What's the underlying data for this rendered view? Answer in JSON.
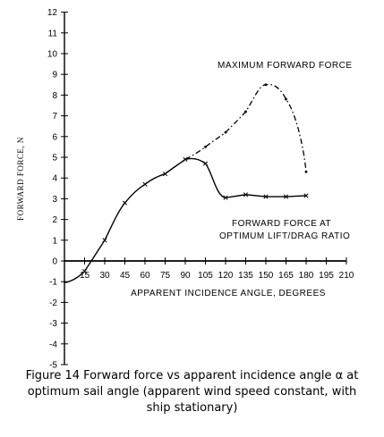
{
  "chart_data": {
    "type": "line",
    "ylabel": "FORWARD FORCE, N",
    "xlabel": "APPARENT INCIDENCE ANGLE, DEGREES",
    "xlim": [
      0,
      210
    ],
    "ylim": [
      -5,
      12
    ],
    "x_ticks": [
      "15",
      "30",
      "45",
      "60",
      "75",
      "90",
      "105",
      "120",
      "135",
      "150",
      "165",
      "180",
      "195",
      "210"
    ],
    "y_ticks": [
      "12",
      "11",
      "10",
      "9",
      "8",
      "7",
      "6",
      "5",
      "4",
      "3",
      "2",
      "1",
      "0",
      "-1",
      "-2",
      "-3",
      "-4",
      "-5"
    ],
    "grid": false,
    "series": [
      {
        "name": "FORWARD FORCE AT OPTIMUM LIFT/DRAG RATIO",
        "line_style": "solid",
        "x": [
          15,
          30,
          45,
          60,
          75,
          90,
          105,
          120,
          135,
          150,
          165,
          180
        ],
        "y": [
          -0.5,
          1.0,
          2.8,
          3.7,
          4.2,
          4.9,
          4.7,
          3.05,
          3.2,
          3.1,
          3.1,
          3.15
        ]
      },
      {
        "name": "MAXIMUM FORWARD FORCE",
        "line_style": "dashed",
        "x": [
          90,
          105,
          120,
          135,
          150,
          165,
          180
        ],
        "y": [
          4.9,
          5.5,
          6.2,
          7.2,
          8.5,
          7.8,
          4.3
        ]
      }
    ],
    "annotations": [
      {
        "lines": [
          "MAXIMUM FORWARD FORCE"
        ]
      },
      {
        "lines": [
          "FORWARD FORCE AT",
          "OPTIMUM LIFT/DRAG RATIO"
        ]
      }
    ]
  },
  "caption": {
    "line1": "Figure 14 Forward force vs apparent incidence angle α at",
    "line2": "optimum sail angle (apparent wind speed constant, with",
    "line3": "ship stationary)"
  }
}
